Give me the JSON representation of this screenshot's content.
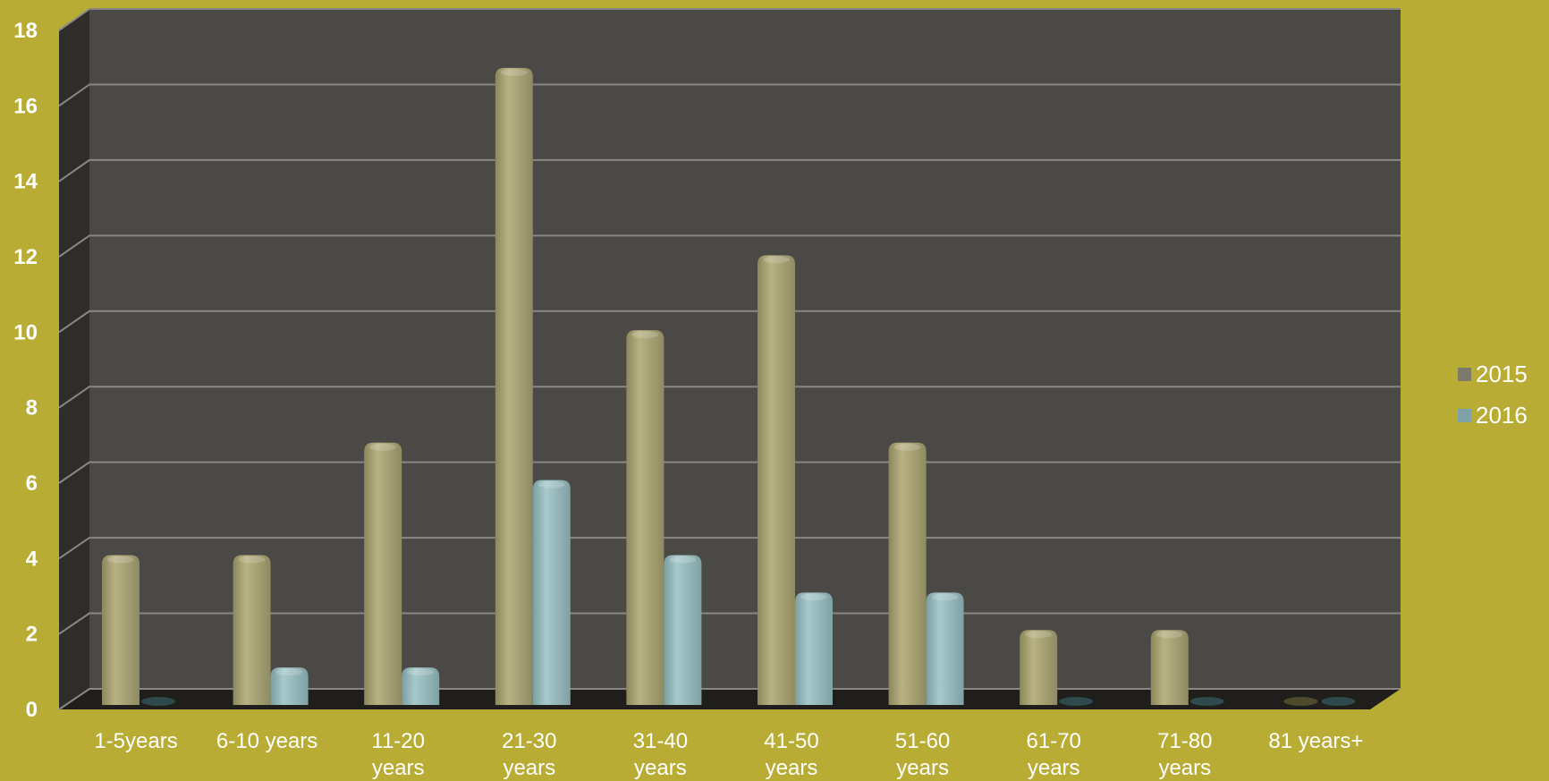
{
  "chart_data": {
    "type": "bar",
    "categories": [
      [
        "1-5years"
      ],
      [
        "6-10 years"
      ],
      [
        "11-20",
        "years"
      ],
      [
        "21-30",
        "years"
      ],
      [
        "31-40",
        "years"
      ],
      [
        "41-50",
        "years"
      ],
      [
        "51-60",
        "years"
      ],
      [
        "61-70",
        "years"
      ],
      [
        "71-80",
        "years"
      ],
      [
        "81 years+"
      ]
    ],
    "series": [
      {
        "name": "2015",
        "color": "#a9a374",
        "values": [
          4,
          4,
          7,
          17,
          10,
          12,
          7,
          2,
          2,
          0
        ]
      },
      {
        "name": "2016",
        "color": "#99bcbe",
        "values": [
          0,
          1,
          1,
          6,
          4,
          3,
          3,
          0,
          0,
          0
        ]
      }
    ],
    "ylim": [
      0,
      18
    ],
    "yticks": [
      "0",
      "2",
      "4",
      "6",
      "8",
      "10",
      "12",
      "14",
      "16",
      "18"
    ],
    "grid": true,
    "legend_position": "right",
    "colors": {
      "background": "#b8ac35",
      "plot_wall": "#4b4945",
      "side_wall": "#2f2d2a",
      "floor": "#1f1e1b",
      "gridline": "#8a8884",
      "legend_2015": "#7d7a6b",
      "legend_2016": "#7fa2a6"
    }
  }
}
